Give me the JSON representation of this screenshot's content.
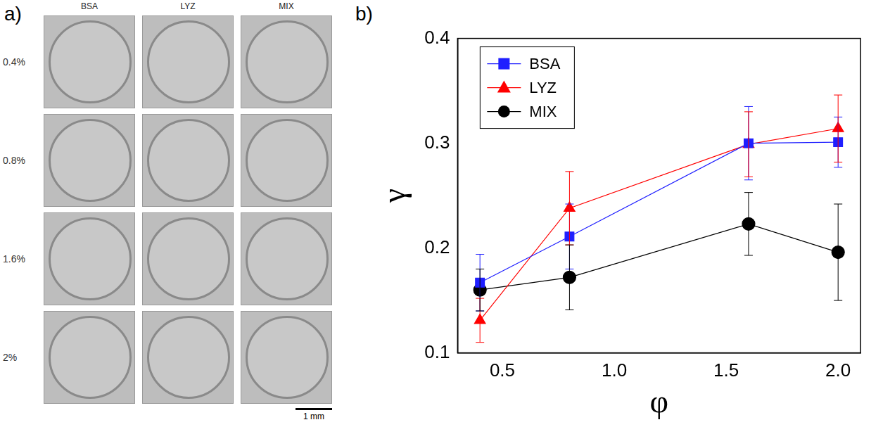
{
  "figure": {
    "panel_a": {
      "label": "a)",
      "columns": [
        "BSA",
        "LYZ",
        "MIX"
      ],
      "rows": [
        "0.4%",
        "0.8%",
        "1.6%",
        "2%"
      ],
      "scale_bar": "1 mm"
    },
    "panel_b": {
      "label": "b)"
    }
  },
  "chart_data": {
    "type": "line",
    "x_label": "φ",
    "y_label": "γ",
    "x": [
      0.4,
      0.8,
      1.6,
      2.0
    ],
    "series": [
      {
        "name": "BSA",
        "color": "#1f1fff",
        "marker": "square",
        "values": [
          0.167,
          0.211,
          0.3,
          0.301
        ],
        "errors": [
          0.027,
          0.031,
          0.035,
          0.024
        ]
      },
      {
        "name": "LYZ",
        "color": "#ff0000",
        "marker": "triangle",
        "values": [
          0.131,
          0.238,
          0.299,
          0.314
        ],
        "errors": [
          0.021,
          0.035,
          0.031,
          0.032
        ]
      },
      {
        "name": "MIX",
        "color": "#000000",
        "marker": "circle",
        "values": [
          0.16,
          0.172,
          0.223,
          0.196
        ],
        "errors": [
          0.02,
          0.031,
          0.03,
          0.046
        ]
      }
    ],
    "xlim": [
      0.3,
      2.1
    ],
    "xticks": [
      0.5,
      {
        "value": 1,
        "label": "1.0"
      },
      1.5,
      {
        "value": 2,
        "label": "2.0"
      }
    ],
    "ylim": [
      0.1,
      0.4
    ],
    "yticks": [
      0.1,
      0.2,
      0.3,
      0.4
    ],
    "grid": false,
    "legend": "top-left"
  }
}
